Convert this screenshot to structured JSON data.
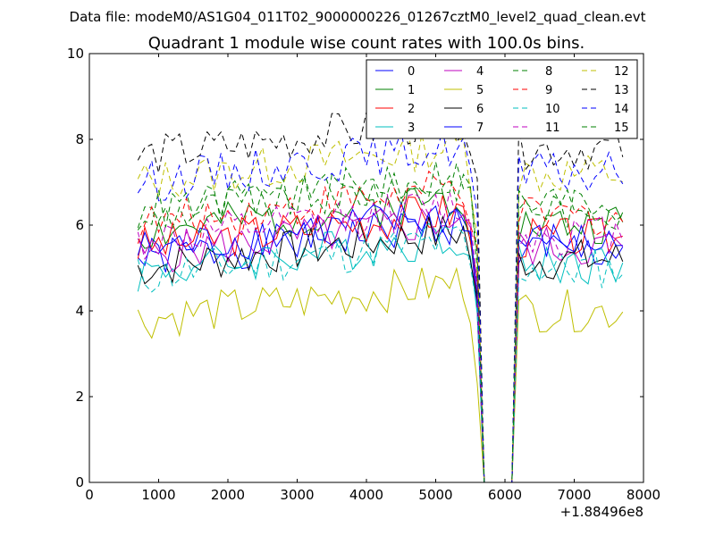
{
  "chart_data": {
    "type": "line",
    "suptitle": "Data file: modeM0/AS1G04_011T02_9000000226_01267cztM0_level2_quad_clean.evt",
    "title": "Quadrant 1 module wise count rates with 100.0s bins.",
    "xlabel": "",
    "ylabel": "",
    "x_offset_label": "+1.88496e8",
    "xlim": [
      0,
      8000
    ],
    "ylim": [
      0,
      10
    ],
    "xticks": [
      0,
      1000,
      2000,
      3000,
      4000,
      5000,
      6000,
      7000,
      8000
    ],
    "yticks": [
      0,
      2,
      4,
      6,
      8,
      10
    ],
    "grid": false,
    "legend_position": "top-right",
    "legend_columns": 4,
    "series_colors": [
      "#0000ff",
      "#008000",
      "#ff0000",
      "#00bfbf",
      "#bf00bf",
      "#bfbf00",
      "#000000",
      "#0000ff",
      "#008000",
      "#ff0000",
      "#00bfbf",
      "#bf00bf",
      "#bfbf00",
      "#000000",
      "#0000ff",
      "#008000"
    ],
    "series_dashed": [
      false,
      false,
      false,
      false,
      false,
      false,
      false,
      false,
      true,
      true,
      true,
      true,
      true,
      true,
      true,
      true
    ],
    "series": [
      {
        "name": "0",
        "base": 5.2,
        "seed": 1
      },
      {
        "name": "1",
        "base": 5.8,
        "seed": 2
      },
      {
        "name": "2",
        "base": 5.5,
        "seed": 3
      },
      {
        "name": "3",
        "base": 4.9,
        "seed": 4
      },
      {
        "name": "4",
        "base": 5.3,
        "seed": 5
      },
      {
        "name": "5",
        "base": 3.8,
        "seed": 6
      },
      {
        "name": "6",
        "base": 5.0,
        "seed": 7
      },
      {
        "name": "7",
        "base": 5.4,
        "seed": 8
      },
      {
        "name": "8",
        "base": 6.2,
        "seed": 9
      },
      {
        "name": "9",
        "base": 6.0,
        "seed": 10
      },
      {
        "name": "10",
        "base": 4.8,
        "seed": 11
      },
      {
        "name": "11",
        "base": 5.6,
        "seed": 12
      },
      {
        "name": "12",
        "base": 7.0,
        "seed": 13
      },
      {
        "name": "13",
        "base": 7.6,
        "seed": 14
      },
      {
        "name": "14",
        "base": 7.0,
        "seed": 15
      },
      {
        "name": "15",
        "base": 6.3,
        "seed": 16
      }
    ],
    "time_start": 700,
    "time_step": 100,
    "gap_start": 5600,
    "gap_end": 6200,
    "time_end": 7750
  }
}
